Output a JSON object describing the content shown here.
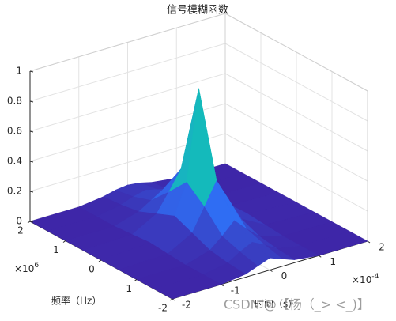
{
  "chart_data": {
    "type": "surface",
    "title": "信号模糊函数",
    "x_label": "时间（s）",
    "y_label": "频率（Hz）",
    "x_multiplier": "×10",
    "x_power": "-4",
    "y_multiplier": "×10",
    "y_power": "6",
    "x": [
      -2,
      -1,
      -0.5,
      -0.25,
      0,
      0.25,
      0.5,
      1,
      2
    ],
    "y": [
      -2,
      -1.5,
      -1,
      -0.5,
      0,
      0.5,
      1,
      1.5,
      2
    ],
    "z": [
      [
        0,
        0,
        0.02,
        0.05,
        0.08,
        0.05,
        0.02,
        0,
        0
      ],
      [
        0,
        0,
        0.03,
        0.08,
        0.12,
        0.08,
        0.03,
        0,
        0
      ],
      [
        0,
        0,
        0.05,
        0.12,
        0.2,
        0.12,
        0.05,
        0,
        0
      ],
      [
        0,
        0.01,
        0.1,
        0.25,
        0.4,
        0.25,
        0.1,
        0.01,
        0
      ],
      [
        0,
        0.02,
        0.15,
        0.35,
        0.95,
        0.35,
        0.15,
        0.02,
        0
      ],
      [
        0,
        0.01,
        0.1,
        0.22,
        0.35,
        0.22,
        0.1,
        0.01,
        0
      ],
      [
        0,
        0,
        0.05,
        0.1,
        0.15,
        0.1,
        0.05,
        0,
        0
      ],
      [
        0,
        0,
        0.03,
        0.06,
        0.08,
        0.06,
        0.03,
        0,
        0
      ],
      [
        0,
        0,
        0.02,
        0.04,
        0.05,
        0.04,
        0.02,
        0,
        0
      ]
    ],
    "xlim": [
      -2,
      2
    ],
    "xticks": [
      -2,
      -1,
      0,
      1,
      2
    ],
    "ylim": [
      -2,
      2
    ],
    "yticks": [
      -2,
      -1,
      0,
      1,
      2
    ],
    "zlim": [
      0,
      1
    ],
    "zticks": [
      0,
      0.2,
      0.4,
      0.6,
      0.8,
      1
    ],
    "grid": true,
    "colormap": [
      "#3e26a8",
      "#2f6ff5",
      "#13beb8",
      "#81cc59",
      "#f9fb15"
    ],
    "watermark": "CSDN @【杨（_> <_)】"
  }
}
